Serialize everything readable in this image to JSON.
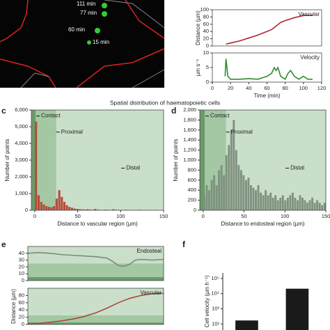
{
  "image": {
    "labels": [
      "111 min",
      "77 min",
      "60 min",
      "15 min"
    ]
  },
  "panels": [
    "c",
    "d",
    "e",
    "f"
  ],
  "section_title": "Spatial distribution of haematopoietic cells",
  "chart_data": [
    {
      "type": "line",
      "xlim": [
        0,
        120
      ],
      "ylim": [
        0,
        100
      ],
      "yticks": [
        0,
        20,
        40,
        60,
        80,
        100
      ],
      "ylabel": "Distance (µm)",
      "series": [
        {
          "name": "Vascular",
          "color": "#b3262a",
          "x": [
            15,
            20,
            30,
            40,
            50,
            60,
            65,
            70,
            75,
            80,
            90,
            100,
            110
          ],
          "values": [
            5,
            8,
            14,
            22,
            30,
            40,
            45,
            55,
            65,
            70,
            78,
            84,
            85
          ]
        }
      ]
    },
    {
      "type": "line",
      "xlim": [
        0,
        120
      ],
      "ylim": [
        0,
        10
      ],
      "yticks": [
        0,
        5,
        10
      ],
      "xticks": [
        0,
        20,
        40,
        60,
        80,
        100,
        120
      ],
      "ylabel": "µm s⁻¹",
      "xlabel": "Time (min)",
      "series": [
        {
          "name": "Velocity",
          "color": "#2e8b2e",
          "x": [
            14,
            15,
            17,
            20,
            30,
            40,
            50,
            55,
            60,
            65,
            68,
            70,
            72,
            75,
            80,
            83,
            86,
            90,
            95,
            100,
            105,
            110
          ],
          "values": [
            2,
            8,
            2,
            1,
            1,
            1.2,
            1,
            1.5,
            2,
            3,
            5,
            4,
            5,
            2,
            1,
            3,
            4,
            2,
            1,
            2,
            1,
            1
          ]
        }
      ]
    },
    {
      "type": "histogram",
      "xlim": [
        -4,
        150
      ],
      "ylim": [
        0,
        6000
      ],
      "xticks": [
        0,
        50,
        100,
        150
      ],
      "yticks": [
        0,
        {
          "value": 1000,
          "label": "1,000"
        },
        {
          "value": 2000,
          "label": "2,000"
        },
        {
          "value": 3000,
          "label": "3,000"
        },
        {
          "value": 4000,
          "label": "4,000"
        },
        {
          "value": 5000,
          "label": "5,000"
        },
        {
          "value": 6000,
          "label": "6,000"
        }
      ],
      "xlabel": "Distance to vascular region (µm)",
      "ylabel": "Number of points",
      "color": "#b84a3a",
      "regions": [
        {
          "label": "Distal",
          "range": [
            -4,
            150
          ],
          "color": "#cadfca"
        },
        {
          "label": "Proximal",
          "range": [
            -4,
            25
          ],
          "color": "#a3c8a3"
        },
        {
          "label": "Contact",
          "range": [
            -4,
            1
          ],
          "color": "#6b9a6b"
        }
      ],
      "bins": [
        0,
        3,
        6,
        9,
        12,
        15,
        18,
        21,
        24,
        27,
        30,
        33,
        36,
        39,
        42,
        45,
        48,
        51,
        54,
        57,
        60,
        63,
        66,
        69,
        72,
        75,
        78,
        81,
        84,
        87,
        90,
        93,
        96,
        99,
        102,
        105,
        108,
        111,
        114,
        117,
        120,
        123,
        126,
        129,
        132,
        135,
        138,
        141,
        144,
        147,
        150
      ],
      "values": [
        5300,
        900,
        500,
        350,
        250,
        200,
        180,
        250,
        700,
        1200,
        800,
        500,
        300,
        200,
        150,
        100,
        80,
        60,
        50,
        40,
        60,
        40,
        30,
        80,
        30,
        20,
        20,
        40,
        20,
        20,
        60,
        30,
        20,
        20,
        10,
        30,
        20,
        10,
        10,
        20,
        30,
        10,
        10,
        10,
        20,
        10,
        10,
        10,
        0,
        10
      ]
    },
    {
      "type": "histogram",
      "xlim": [
        -4,
        150
      ],
      "ylim": [
        0,
        2000
      ],
      "xticks": [
        0,
        50,
        100,
        150
      ],
      "yticks": [
        0,
        200,
        400,
        600,
        800,
        {
          "value": 1000,
          "label": "1,000"
        },
        {
          "value": 1200,
          "label": "1,200"
        },
        {
          "value": 1400,
          "label": "1,400"
        },
        {
          "value": 1600,
          "label": "1,600"
        },
        {
          "value": 1800,
          "label": "1,800"
        },
        {
          "value": 2000,
          "label": "2,000"
        }
      ],
      "xlabel": "Distance to endosteal region (µm)",
      "ylabel": "Number of points",
      "color": "#7f917f",
      "regions": [
        {
          "label": "Distal",
          "range": [
            -4,
            150
          ],
          "color": "#cadfca"
        },
        {
          "label": "Proximal",
          "range": [
            -4,
            28
          ],
          "color": "#a3c8a3"
        },
        {
          "label": "Contact",
          "range": [
            -4,
            2
          ],
          "color": "#6b9a6b"
        }
      ],
      "bins": [
        0,
        3,
        6,
        9,
        12,
        15,
        18,
        21,
        24,
        27,
        30,
        33,
        36,
        39,
        42,
        45,
        48,
        51,
        54,
        57,
        60,
        63,
        66,
        69,
        72,
        75,
        78,
        81,
        84,
        87,
        90,
        93,
        96,
        99,
        102,
        105,
        108,
        111,
        114,
        117,
        120,
        123,
        126,
        129,
        132,
        135,
        138,
        141,
        144,
        147,
        150
      ],
      "values": [
        300,
        500,
        400,
        600,
        700,
        500,
        800,
        900,
        700,
        1100,
        1300,
        1600,
        1800,
        1200,
        900,
        800,
        700,
        600,
        650,
        500,
        450,
        400,
        500,
        350,
        300,
        400,
        300,
        350,
        250,
        300,
        200,
        250,
        300,
        200,
        250,
        300,
        350,
        250,
        200,
        300,
        250,
        200,
        150,
        200,
        250,
        150,
        200,
        150,
        100,
        150
      ]
    },
    {
      "type": "line",
      "xlim": [
        0,
        120
      ],
      "ylim": [
        0,
        50
      ],
      "yticks": [
        0,
        10,
        20,
        30,
        40
      ],
      "regions": [
        {
          "range": [
            0,
            25
          ],
          "color": "#a3c8a3"
        },
        {
          "range": [
            0,
            5
          ],
          "color": "#6b9a6b"
        }
      ],
      "series": [
        {
          "name": "Endosteal",
          "color": "#7a8a7a",
          "x": [
            0,
            10,
            20,
            30,
            40,
            50,
            60,
            70,
            75,
            80,
            85,
            90,
            95,
            100,
            110,
            120
          ],
          "values": [
            40,
            41,
            40,
            38,
            37,
            36,
            35,
            33,
            28,
            22,
            21,
            24,
            30,
            31,
            30,
            31
          ]
        }
      ]
    },
    {
      "type": "line",
      "xlim": [
        0,
        120
      ],
      "ylim": [
        0,
        100
      ],
      "yticks": [
        0,
        20,
        40,
        60,
        80
      ],
      "ylabel": "Distance (µm)",
      "regions": [
        {
          "range": [
            0,
            25
          ],
          "color": "#a3c8a3"
        },
        {
          "range": [
            0,
            5
          ],
          "color": "#6b9a6b"
        }
      ],
      "series": [
        {
          "name": "Vascular",
          "color": "#a8483a",
          "x": [
            0,
            10,
            20,
            30,
            40,
            50,
            60,
            70,
            80,
            90,
            100,
            110,
            120
          ],
          "values": [
            2,
            3,
            6,
            10,
            15,
            22,
            32,
            45,
            60,
            72,
            80,
            85,
            86
          ]
        }
      ]
    },
    {
      "type": "bar",
      "log_y": true,
      "ylim": [
        40,
        230000
      ],
      "yticks": [
        {
          "value": 100,
          "label": "10²"
        },
        {
          "value": 1000,
          "label": "10³"
        },
        {
          "value": 10000,
          "label": "10⁴"
        },
        {
          "value": 100000,
          "label": "10⁵"
        }
      ],
      "ylabel": "Cell velocity (µm h⁻¹)",
      "color": "#1a1a1a",
      "categories": [
        null,
        null
      ],
      "values": [
        170,
        21000
      ]
    }
  ]
}
